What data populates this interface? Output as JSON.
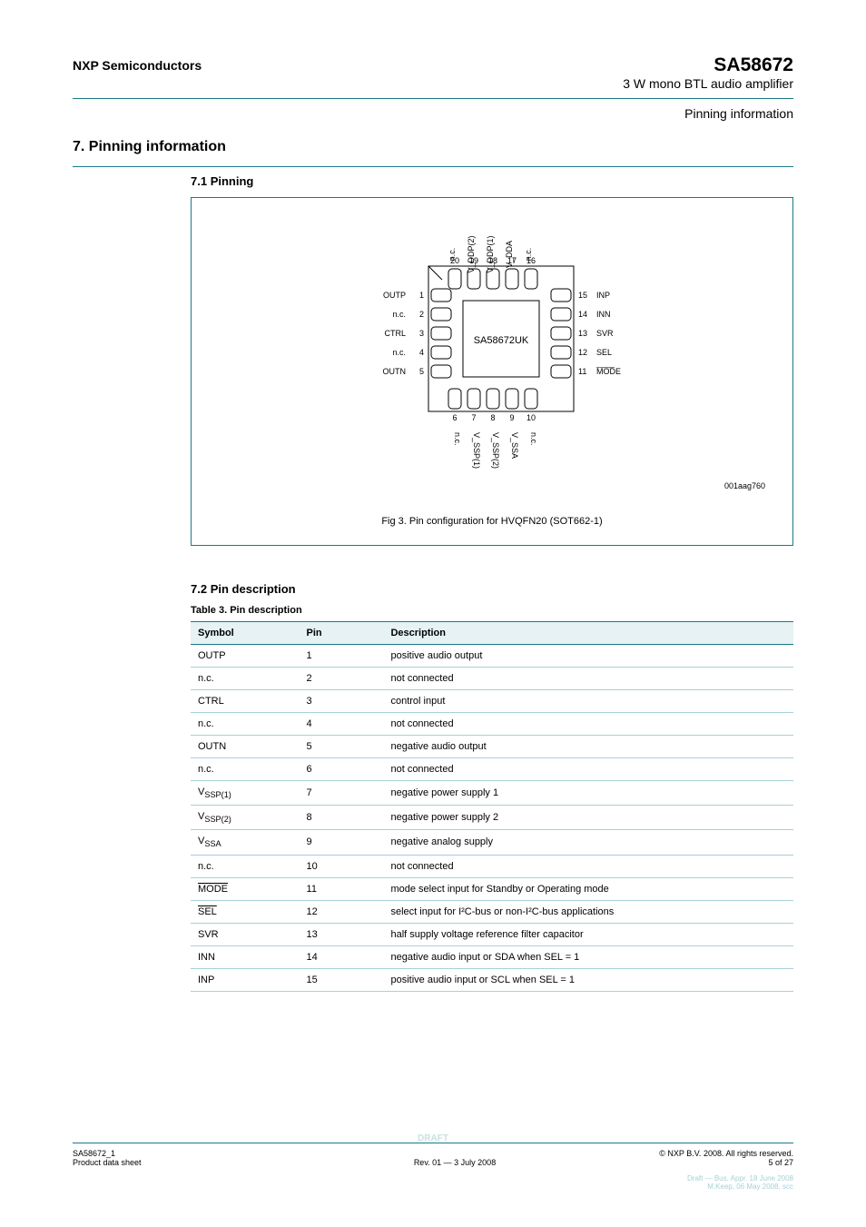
{
  "header": {
    "company": "NXP Semiconductors",
    "part_number": "SA58672",
    "part_desc": "3 W mono BTL audio amplifier",
    "right_label": "Pinning information"
  },
  "section": {
    "number": "7.",
    "title": "Pinning information",
    "sub_number": "7.1",
    "sub_title": "Pinning"
  },
  "figure": {
    "doc_id": "001aag760",
    "caption_number": "Fig 3.",
    "caption_text": "Pin configuration for HVQFN20 (SOT662-1)",
    "inner_text": "SA58672UK",
    "pin_labels": {
      "top": [
        {
          "num": "20",
          "name": "n.c."
        },
        {
          "num": "19",
          "name": "V_DDP(2)"
        },
        {
          "num": "18",
          "name": "V_DDP(1)"
        },
        {
          "num": "17",
          "name": "V_DDA"
        },
        {
          "num": "16",
          "name": "n.c."
        }
      ],
      "left": [
        {
          "num": "1",
          "name": "OUTP"
        },
        {
          "num": "2",
          "name": "n.c."
        },
        {
          "num": "3",
          "name": "CTRL"
        },
        {
          "num": "4",
          "name": "n.c."
        },
        {
          "num": "5",
          "name": "OUTN"
        }
      ],
      "right": [
        {
          "num": "15",
          "name": "INP"
        },
        {
          "num": "14",
          "name": "INN"
        },
        {
          "num": "13",
          "name": "SVR"
        },
        {
          "num": "12",
          "name": "SEL"
        },
        {
          "num": "11",
          "name": "MODE"
        }
      ],
      "bottom": [
        {
          "num": "6",
          "name": "n.c."
        },
        {
          "num": "7",
          "name": "V_SSP(1)"
        },
        {
          "num": "8",
          "name": "V_SSP(2)"
        },
        {
          "num": "9",
          "name": "V_SSA"
        },
        {
          "num": "10",
          "name": "n.c."
        }
      ]
    }
  },
  "table": {
    "caption_number": "Table 3.",
    "caption_text": "Pin description",
    "columns": [
      "Symbol",
      "Pin",
      "Description"
    ],
    "rows": [
      {
        "symbol": "OUTP",
        "pin": "1",
        "desc": "positive audio output"
      },
      {
        "symbol": "n.c.",
        "pin": "2",
        "desc": "not connected"
      },
      {
        "symbol": "CTRL",
        "pin": "3",
        "desc": "control input"
      },
      {
        "symbol": "n.c.",
        "pin": "4",
        "desc": "not connected"
      },
      {
        "symbol": "OUTN",
        "pin": "5",
        "desc": "negative audio output"
      },
      {
        "symbol": "n.c.",
        "pin": "6",
        "desc": "not connected"
      },
      {
        "symbol": "V_SSP(1)",
        "pin": "7",
        "desc": "negative power supply 1"
      },
      {
        "symbol": "V_SSP(2)",
        "pin": "8",
        "desc": "negative power supply 2"
      },
      {
        "symbol": "V_SSA",
        "pin": "9",
        "desc": "negative analog supply"
      },
      {
        "symbol": "n.c.",
        "pin": "10",
        "desc": "not connected"
      },
      {
        "symbol": "MODE",
        "pin": "11",
        "desc": "mode select input for Standby or Operating mode"
      },
      {
        "symbol": "SEL",
        "pin": "12",
        "desc": "select input for I²C-bus or non-I²C-bus applications"
      },
      {
        "symbol": "SVR",
        "pin": "13",
        "desc": "half supply voltage reference filter capacitor"
      },
      {
        "symbol": "INN",
        "pin": "14",
        "desc": "negative audio input or SDA when SEL = 1"
      },
      {
        "symbol": "INP",
        "pin": "15",
        "desc": "positive audio input or SCL when SEL = 1"
      }
    ]
  },
  "footer": {
    "left": "SA58672_1",
    "center_top": "© NXP B.V. 2008. All rights reserved.",
    "left_bottom": "Product data sheet",
    "center_bottom": "Rev. 01 — 3 July 2008",
    "right_bottom": "5 of 27",
    "note_center": "DRAFT",
    "note1": "Draft — Bus. Appr. 18 June 2008",
    "note2": "M.Keep, 06 May 2008, scc"
  },
  "styling": {
    "border_color": "#1a7a8a",
    "row_line_color": "#a8d0d6",
    "header_bg": "#e6f2f4",
    "text_color": "#000000",
    "body_bg": "#ffffff"
  }
}
